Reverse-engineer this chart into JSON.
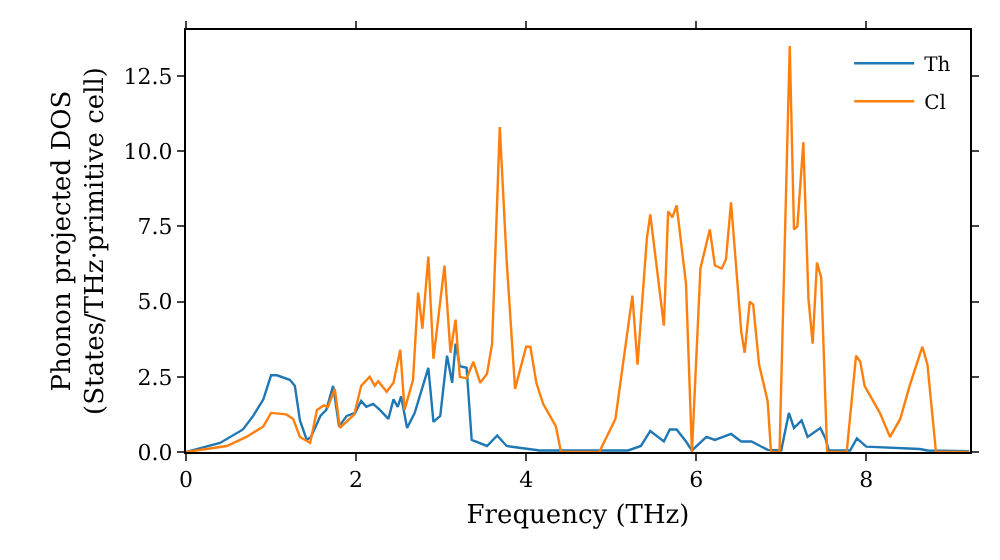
{
  "chart_data": {
    "type": "line",
    "xlabel": "Frequency (THz)",
    "ylabel": "Phonon projected DOS\n(States/THz·primitive cell)",
    "xlim": [
      0,
      9.22
    ],
    "ylim": [
      0,
      14.03
    ],
    "xticks": [
      0,
      2,
      4,
      6,
      8
    ],
    "yticks": [
      {
        "value": 0,
        "label": "0.0"
      },
      {
        "value": 2.5,
        "label": "2.5"
      },
      {
        "value": 5,
        "label": "5.0"
      },
      {
        "value": 7.5,
        "label": "7.5"
      },
      {
        "value": 10,
        "label": "10.0"
      },
      {
        "value": 12.5,
        "label": "12.5"
      }
    ],
    "grid": false,
    "legend": "top right",
    "marker": "none",
    "line_style": "solid",
    "series": [
      {
        "name": "Th",
        "color": "#1f77b4",
        "x": [
          0,
          0.4,
          0.67,
          0.79,
          0.91,
          1.0,
          1.07,
          1.22,
          1.28,
          1.34,
          1.42,
          1.47,
          1.58,
          1.65,
          1.73,
          1.8,
          1.89,
          1.99,
          2.06,
          2.12,
          2.2,
          2.28,
          2.38,
          2.44,
          2.49,
          2.53,
          2.6,
          2.69,
          2.85,
          2.91,
          2.99,
          3.07,
          3.13,
          3.17,
          3.22,
          3.3,
          3.36,
          3.54,
          3.66,
          3.77,
          4.16,
          5.2,
          5.35,
          5.46,
          5.62,
          5.69,
          5.77,
          5.88,
          5.95,
          6.12,
          6.22,
          6.41,
          6.53,
          6.65,
          6.84,
          7.0,
          7.09,
          7.15,
          7.24,
          7.31,
          7.46,
          7.52,
          7.56,
          7.81,
          7.89,
          8.0,
          8.63,
          8.72,
          9.21
        ],
        "values": [
          0,
          0.3,
          0.75,
          1.2,
          1.75,
          2.55,
          2.55,
          2.4,
          2.2,
          1.05,
          0.4,
          0.5,
          1.2,
          1.4,
          2.2,
          0.85,
          1.2,
          1.3,
          1.7,
          1.5,
          1.6,
          1.4,
          1.1,
          1.75,
          1.5,
          1.85,
          0.8,
          1.3,
          2.8,
          1.0,
          1.2,
          3.2,
          2.3,
          3.6,
          2.85,
          2.8,
          0.4,
          0.2,
          0.55,
          0.2,
          0.05,
          0.05,
          0.2,
          0.7,
          0.35,
          0.75,
          0.75,
          0.35,
          0.05,
          0.5,
          0.4,
          0.6,
          0.35,
          0.35,
          0.07,
          0.05,
          1.3,
          0.8,
          1.05,
          0.5,
          0.8,
          0.45,
          0.05,
          0.05,
          0.45,
          0.18,
          0.1,
          0.05,
          0.03
        ]
      },
      {
        "name": "Cl",
        "color": "#ff7f0e",
        "x": [
          0,
          0.48,
          0.71,
          0.91,
          1.0,
          1.18,
          1.26,
          1.34,
          1.46,
          1.54,
          1.62,
          1.67,
          1.75,
          1.81,
          1.98,
          2.06,
          2.16,
          2.22,
          2.26,
          2.36,
          2.44,
          2.52,
          2.57,
          2.67,
          2.73,
          2.78,
          2.85,
          2.91,
          3.04,
          3.11,
          3.17,
          3.22,
          3.3,
          3.38,
          3.46,
          3.54,
          3.6,
          3.69,
          3.77,
          3.87,
          4.0,
          4.05,
          4.12,
          4.2,
          4.35,
          4.41,
          4.86,
          5.05,
          5.25,
          5.31,
          5.42,
          5.46,
          5.62,
          5.67,
          5.72,
          5.77,
          5.88,
          5.95,
          6.05,
          6.16,
          6.22,
          6.3,
          6.35,
          6.41,
          6.53,
          6.57,
          6.63,
          6.67,
          6.74,
          6.84,
          6.88,
          6.98,
          7.1,
          7.15,
          7.19,
          7.26,
          7.32,
          7.37,
          7.42,
          7.47,
          7.54,
          7.77,
          7.88,
          7.93,
          7.98,
          8.16,
          8.28,
          8.4,
          8.51,
          8.66,
          8.72,
          8.82,
          9.21
        ],
        "values": [
          0,
          0.2,
          0.5,
          0.85,
          1.3,
          1.25,
          1.1,
          0.5,
          0.3,
          1.4,
          1.55,
          1.5,
          2.1,
          0.8,
          1.25,
          2.2,
          2.5,
          2.2,
          2.35,
          2.0,
          2.3,
          3.4,
          1.4,
          2.4,
          5.3,
          4.1,
          6.5,
          3.1,
          6.2,
          3.3,
          4.4,
          2.5,
          2.45,
          3.0,
          2.3,
          2.6,
          3.6,
          10.8,
          6.4,
          2.1,
          3.5,
          3.5,
          2.3,
          1.6,
          0.85,
          0,
          0,
          1.1,
          5.2,
          2.9,
          7.1,
          7.9,
          4.2,
          8.0,
          7.8,
          8.2,
          5.6,
          0,
          6.1,
          7.4,
          6.2,
          6.1,
          6.4,
          8.3,
          4.0,
          3.3,
          5.0,
          4.9,
          2.9,
          1.7,
          0,
          0,
          13.5,
          7.4,
          7.5,
          10.3,
          5.1,
          3.6,
          6.3,
          5.8,
          0,
          0,
          3.2,
          3.0,
          2.2,
          1.3,
          0.5,
          1.1,
          2.2,
          3.5,
          2.9,
          0,
          0
        ]
      }
    ]
  }
}
